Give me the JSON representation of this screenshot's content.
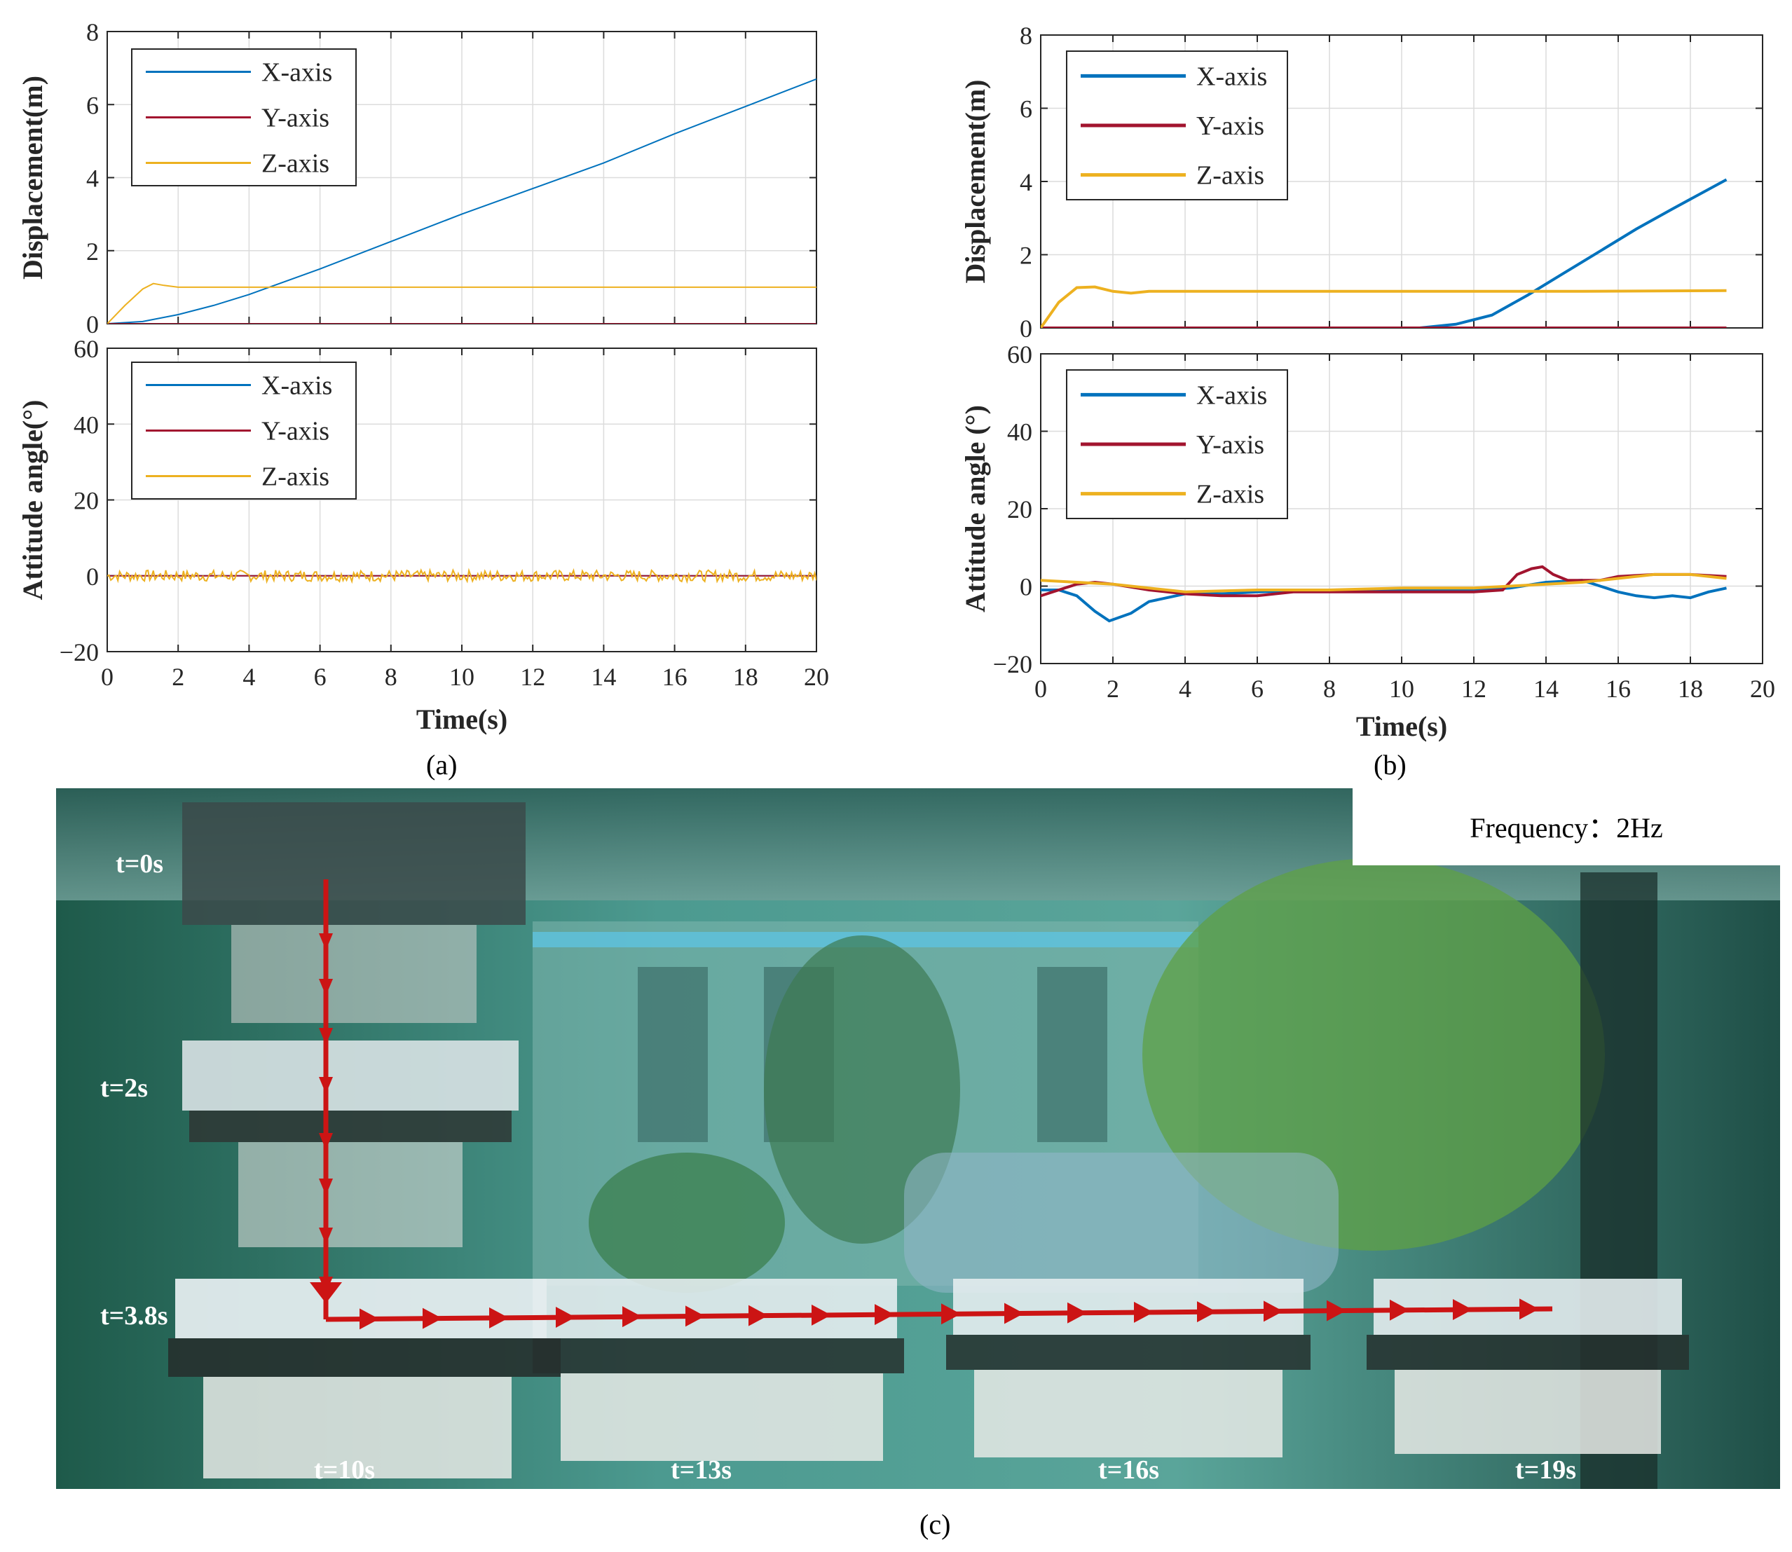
{
  "panels": [
    {
      "label": "(a)",
      "top": {
        "ylabel": "Displacement(m)",
        "yticks": [
          "0",
          "2",
          "4",
          "6",
          "8"
        ],
        "legend": [
          "X-axis",
          "Y-axis",
          "Z-axis"
        ]
      },
      "bottom": {
        "ylabel": "Attitude angle(°)",
        "yticks": [
          "−20",
          "0",
          "20",
          "40",
          "60"
        ],
        "legend": [
          "X-axis",
          "Y-axis",
          "Z-axis"
        ]
      },
      "xlabel": "Time(s)",
      "xticks": [
        "0",
        "2",
        "4",
        "6",
        "8",
        "10",
        "12",
        "14",
        "16",
        "18",
        "20"
      ]
    },
    {
      "label": "(b)",
      "top": {
        "ylabel": "Displacement(m)",
        "yticks": [
          "0",
          "2",
          "4",
          "6",
          "8"
        ],
        "legend": [
          "X-axis",
          "Y-axis",
          "Z-axis"
        ]
      },
      "bottom": {
        "ylabel": "Attitude angle (°)",
        "yticks": [
          "−20",
          "0",
          "20",
          "40",
          "60"
        ],
        "legend": [
          "X-axis",
          "Y-axis",
          "Z-axis"
        ]
      },
      "xlabel": "Time(s)",
      "xticks": [
        "0",
        "2",
        "4",
        "6",
        "8",
        "10",
        "12",
        "14",
        "16",
        "18",
        "20"
      ]
    }
  ],
  "photo": {
    "label": "(c)",
    "frequency": "Frequency：2Hz",
    "times": [
      "t=0s",
      "t=2s",
      "t=3.8s",
      "t=10s",
      "t=13s",
      "t=16s",
      "t=19s"
    ]
  },
  "colors": {
    "x": "#0072BD",
    "y": "#A2142F",
    "z": "#EDB120"
  },
  "chart_data": [
    {
      "type": "line",
      "panel": "a-top",
      "xlim": [
        0,
        20
      ],
      "ylim": [
        0,
        8
      ],
      "series": [
        {
          "name": "X-axis",
          "x": [
            0,
            1,
            2,
            3,
            4,
            5,
            6,
            8,
            10,
            12,
            14,
            16,
            18,
            20
          ],
          "y": [
            0,
            0.06,
            0.25,
            0.5,
            0.8,
            1.15,
            1.5,
            2.25,
            3.0,
            3.7,
            4.4,
            5.2,
            5.95,
            6.7
          ]
        },
        {
          "name": "Y-axis",
          "x": [
            0,
            20
          ],
          "y": [
            0,
            0
          ]
        },
        {
          "name": "Z-axis",
          "x": [
            0,
            0.5,
            1,
            1.3,
            1.6,
            2,
            3,
            5,
            10,
            15,
            20
          ],
          "y": [
            0,
            0.5,
            0.95,
            1.1,
            1.05,
            1.0,
            1.0,
            1.0,
            1.0,
            1.0,
            1.0
          ]
        }
      ]
    },
    {
      "type": "line",
      "panel": "a-bottom",
      "xlim": [
        0,
        20
      ],
      "ylim": [
        -20,
        60
      ],
      "series": [
        {
          "name": "X-axis",
          "x": [
            0,
            20
          ],
          "y": [
            0,
            0
          ]
        },
        {
          "name": "Y-axis",
          "x": [
            0,
            20
          ],
          "y": [
            0,
            0
          ]
        },
        {
          "name": "Z-axis",
          "x": [
            0,
            20
          ],
          "y": [
            0,
            0
          ],
          "noise": 1.5
        }
      ]
    },
    {
      "type": "line",
      "panel": "b-top",
      "xlim": [
        0,
        20
      ],
      "ylim": [
        0,
        8
      ],
      "series": [
        {
          "name": "X-axis",
          "x": [
            0,
            10.5,
            11.5,
            12.5,
            13.5,
            14.5,
            15.5,
            16.5,
            17.5,
            19
          ],
          "y": [
            0,
            0,
            0.1,
            0.35,
            0.9,
            1.5,
            2.1,
            2.7,
            3.25,
            4.05
          ]
        },
        {
          "name": "Y-axis",
          "x": [
            0,
            19
          ],
          "y": [
            0,
            0
          ]
        },
        {
          "name": "Z-axis",
          "x": [
            0,
            0.5,
            1,
            1.5,
            2,
            2.5,
            3,
            5,
            10,
            15,
            19
          ],
          "y": [
            0,
            0.7,
            1.1,
            1.12,
            1.0,
            0.95,
            1.0,
            1.0,
            1.0,
            1.0,
            1.02
          ]
        }
      ]
    },
    {
      "type": "line",
      "panel": "b-bottom",
      "xlim": [
        0,
        20
      ],
      "ylim": [
        -20,
        60
      ],
      "series": [
        {
          "name": "X-axis",
          "x": [
            0,
            0.5,
            1,
            1.5,
            1.9,
            2.5,
            3,
            4,
            5,
            6,
            8,
            10,
            12,
            13,
            14,
            15,
            15.5,
            16,
            16.5,
            17,
            17.5,
            18,
            18.5,
            19
          ],
          "y": [
            -1,
            -1,
            -2.5,
            -6.5,
            -9,
            -7,
            -4,
            -2,
            -2,
            -1.5,
            -1,
            -1,
            -1,
            -0.5,
            1,
            1.5,
            0,
            -1.5,
            -2.5,
            -3,
            -2.5,
            -3,
            -1.5,
            -0.5
          ]
        },
        {
          "name": "Y-axis",
          "x": [
            0,
            0.5,
            1,
            1.5,
            2,
            3,
            4,
            5,
            6,
            7,
            8,
            10,
            12,
            12.8,
            13.2,
            13.6,
            13.9,
            14.2,
            14.6,
            15,
            15.5,
            16,
            17,
            18,
            19
          ],
          "y": [
            -2.5,
            -1,
            0.5,
            1,
            0.5,
            -1,
            -2,
            -2.5,
            -2.5,
            -1.5,
            -1.5,
            -1.5,
            -1.5,
            -1,
            3,
            4.5,
            5,
            3,
            1.5,
            1.5,
            1.5,
            2.5,
            3,
            3,
            2.5
          ]
        },
        {
          "name": "Z-axis",
          "x": [
            0,
            1,
            2,
            4,
            6,
            8,
            10,
            12,
            13,
            14,
            15,
            16,
            17,
            18,
            19
          ],
          "y": [
            1.5,
            1,
            0.5,
            -1.5,
            -1,
            -1,
            -0.5,
            -0.5,
            0,
            0.5,
            1,
            2,
            3,
            3,
            2
          ]
        }
      ]
    }
  ]
}
